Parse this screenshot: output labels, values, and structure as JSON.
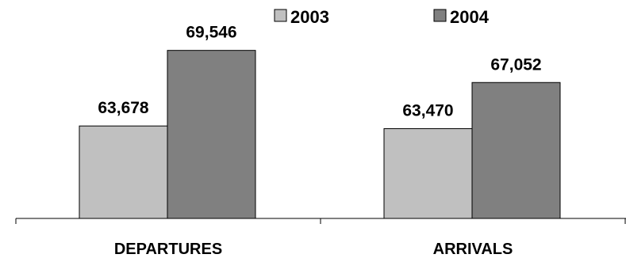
{
  "chart_data": {
    "type": "bar",
    "title": "",
    "xlabel": "",
    "ylabel": "",
    "categories": [
      "DEPARTURES",
      "ARRIVALS"
    ],
    "series": [
      {
        "name": "2003",
        "values": [
          63678,
          63470
        ],
        "labels": [
          "63,678",
          "63,470"
        ],
        "color": "#c0c0c0"
      },
      {
        "name": "2004",
        "values": [
          69546,
          67052
        ],
        "labels": [
          "69,546",
          "67,052"
        ],
        "color": "#808080"
      }
    ],
    "ylim": [
      56500,
      71000
    ],
    "grid": false,
    "legend": "top-right"
  }
}
